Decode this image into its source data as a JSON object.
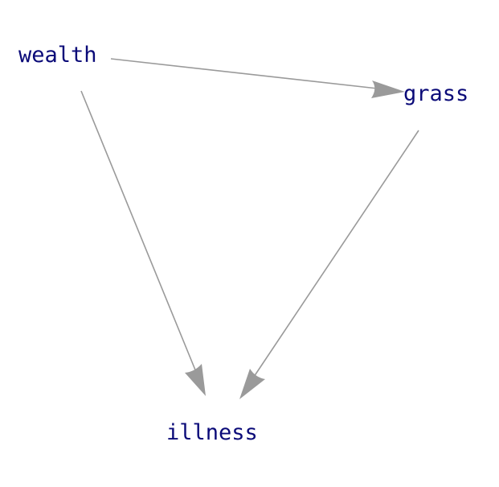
{
  "nodes": [
    {
      "id": "wealth",
      "label": "wealth"
    },
    {
      "id": "grass",
      "label": "grass"
    },
    {
      "id": "illness",
      "label": "illness"
    }
  ],
  "edges": [
    {
      "from": "wealth",
      "to": "grass"
    },
    {
      "from": "wealth",
      "to": "illness"
    },
    {
      "from": "grass",
      "to": "illness"
    }
  ],
  "colors": {
    "label": "#0a0a78",
    "edge": "#9a9a9a",
    "background": "#ffffff"
  }
}
